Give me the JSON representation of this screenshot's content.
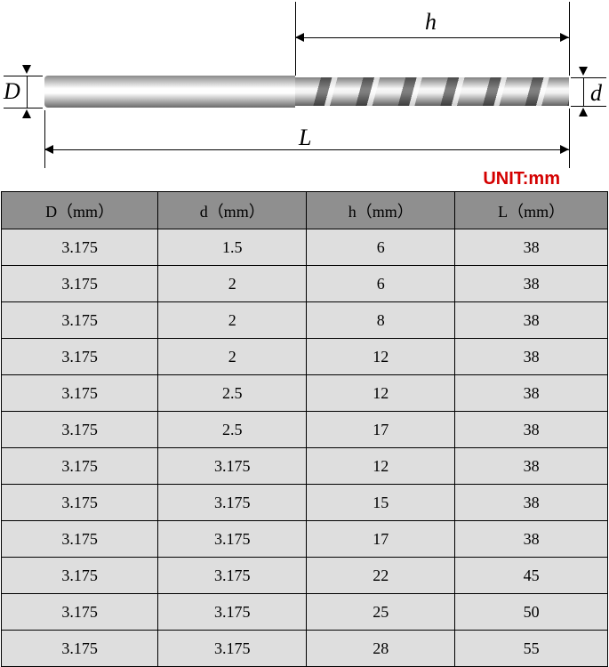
{
  "diagram": {
    "labels": {
      "D": "D",
      "d": "d",
      "h": "h",
      "L": "L"
    },
    "unit_label": "UNIT:mm",
    "dim_line_color": "#000000",
    "label_fontsize": 26,
    "label_fontstyle": "italic",
    "unit_color": "#d40000",
    "shank_gradient": [
      "#8a8a8a",
      "#fefefe",
      "#6a6a6a"
    ],
    "flute_gradient": [
      "#808080",
      "#f8f8f8",
      "#606060"
    ]
  },
  "table": {
    "header_bg": "#8f8f8f",
    "row_bg": "#dedede",
    "border_color": "#000000",
    "columns": [
      "D（mm）",
      "d（mm）",
      "h（mm）",
      "L（mm）"
    ],
    "rows": [
      [
        "3.175",
        "1.5",
        "6",
        "38"
      ],
      [
        "3.175",
        "2",
        "6",
        "38"
      ],
      [
        "3.175",
        "2",
        "8",
        "38"
      ],
      [
        "3.175",
        "2",
        "12",
        "38"
      ],
      [
        "3.175",
        "2.5",
        "12",
        "38"
      ],
      [
        "3.175",
        "2.5",
        "17",
        "38"
      ],
      [
        "3.175",
        "3.175",
        "12",
        "38"
      ],
      [
        "3.175",
        "3.175",
        "15",
        "38"
      ],
      [
        "3.175",
        "3.175",
        "17",
        "38"
      ],
      [
        "3.175",
        "3.175",
        "22",
        "45"
      ],
      [
        "3.175",
        "3.175",
        "25",
        "50"
      ],
      [
        "3.175",
        "3.175",
        "28",
        "55"
      ]
    ]
  }
}
